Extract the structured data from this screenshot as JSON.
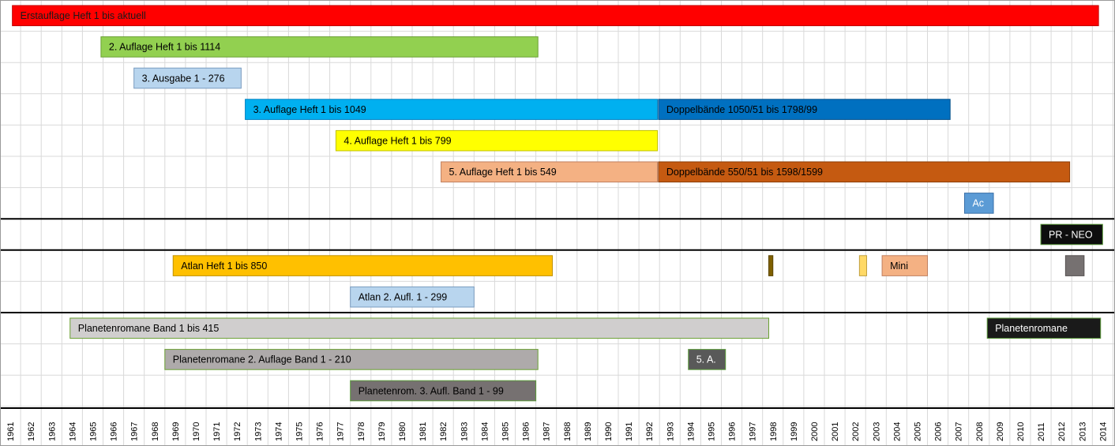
{
  "chart_data": {
    "type": "gantt",
    "title": "",
    "xlabel": "",
    "ylabel": "",
    "x_range": [
      1961,
      2015
    ],
    "grid": true,
    "years": [
      "1961",
      "1962",
      "1963",
      "1964",
      "1965",
      "1966",
      "1967",
      "1968",
      "1969",
      "1970",
      "1971",
      "1972",
      "1973",
      "1974",
      "1975",
      "1976",
      "1977",
      "1978",
      "1979",
      "1980",
      "1981",
      "1982",
      "1983",
      "1984",
      "1985",
      "1986",
      "1987",
      "1988",
      "1989",
      "1990",
      "1991",
      "1992",
      "1993",
      "1994",
      "1995",
      "1996",
      "1997",
      "1998",
      "1999",
      "2000",
      "2001",
      "2002",
      "2003",
      "2004",
      "2005",
      "2006",
      "2007",
      "2008",
      "2009",
      "2010",
      "2011",
      "2012",
      "2013",
      "2014"
    ],
    "separator_after_rows": [
      6,
      7,
      9
    ],
    "row_count": 13,
    "bars": [
      {
        "row": 0,
        "start": 1961.6,
        "end": 2014.3,
        "label": "Erstauflage Heft 1 bis aktuell",
        "color": "#ff0000",
        "border": "#c00000",
        "text_color": "#1a1a1a"
      },
      {
        "row": 1,
        "start": 1965.9,
        "end": 1987.1,
        "label": "2. Auflage Heft 1 bis 1114",
        "color": "#92d050",
        "border": "#6aa032",
        "text_color": "#000000"
      },
      {
        "row": 2,
        "start": 1967.5,
        "end": 1972.7,
        "label": "3. Ausgabe 1 - 276",
        "color": "#b8d5ee",
        "border": "#7a9cc0",
        "text_color": "#000000"
      },
      {
        "row": 3,
        "start": 1972.9,
        "end": 1992.9,
        "label": "3. Auflage Heft 1 bis 1049",
        "color": "#00b0f0",
        "border": "#0080c0",
        "text_color": "#000000"
      },
      {
        "row": 3,
        "start": 1992.95,
        "end": 2007.1,
        "label": "Doppelbände 1050/51 bis 1798/99",
        "color": "#0070c0",
        "border": "#004f8a",
        "text_color": "#000000"
      },
      {
        "row": 4,
        "start": 1977.3,
        "end": 1992.9,
        "label": "4. Auflage Heft 1 bis 799",
        "color": "#ffff00",
        "border": "#c0c000",
        "text_color": "#000000"
      },
      {
        "row": 5,
        "start": 1982.4,
        "end": 1992.9,
        "label": "5. Auflage Heft 1 bis 549",
        "color": "#f4b183",
        "border": "#c08060",
        "text_color": "#000000"
      },
      {
        "row": 5,
        "start": 1992.95,
        "end": 2012.9,
        "label": "Doppelbände 550/51 bis 1598/1599",
        "color": "#c55a11",
        "border": "#8a3c08",
        "text_color": "#000000"
      },
      {
        "row": 6,
        "start": 2007.8,
        "end": 2009.2,
        "label": "Ac",
        "color": "#5b9bd5",
        "border": "#3a70a8",
        "text_color": "#ffffff"
      },
      {
        "row": 7,
        "start": 2011.5,
        "end": 2014.5,
        "label": "PR - NEO",
        "color": "#0d0d0d",
        "border": "#5a9a3a",
        "text_color": "#ffffff"
      },
      {
        "row": 8,
        "start": 1969.4,
        "end": 1987.8,
        "label": "Atlan Heft 1 bis 850",
        "color": "#ffc000",
        "border": "#c09000",
        "text_color": "#000000"
      },
      {
        "row": 8,
        "start": 1998.3,
        "end": 1998.5,
        "label": "",
        "color": "#7f6000",
        "border": "#5a4400",
        "text_color": "#000000"
      },
      {
        "row": 8,
        "start": 2002.7,
        "end": 2003.05,
        "label": "",
        "color": "#ffd966",
        "border": "#c0a040",
        "text_color": "#000000"
      },
      {
        "row": 8,
        "start": 2003.8,
        "end": 2006.0,
        "label": "Mini",
        "color": "#f4b183",
        "border": "#c08060",
        "text_color": "#000000"
      },
      {
        "row": 8,
        "start": 2012.7,
        "end": 2013.6,
        "label": "",
        "color": "#767171",
        "border": "#555050",
        "text_color": "#000000"
      },
      {
        "row": 9,
        "start": 1978.0,
        "end": 1984.0,
        "label": "Atlan 2. Aufl. 1 - 299",
        "color": "#b8d5ee",
        "border": "#7a9cc0",
        "text_color": "#000000"
      },
      {
        "row": 10,
        "start": 1964.4,
        "end": 1998.3,
        "label": "Planetenromane Band 1 bis 415",
        "color": "#d0cece",
        "border": "#6aa032",
        "text_color": "#000000"
      },
      {
        "row": 10,
        "start": 2008.9,
        "end": 2014.4,
        "label": "Planetenromane",
        "color": "#1a1a1a",
        "border": "#5a9a3a",
        "text_color": "#ffffff"
      },
      {
        "row": 11,
        "start": 1969.0,
        "end": 1987.1,
        "label": "Planetenromane 2. Auflage Band 1 - 210",
        "color": "#aeaaaa",
        "border": "#6aa032",
        "text_color": "#000000"
      },
      {
        "row": 11,
        "start": 1994.4,
        "end": 1996.2,
        "label": "5. A.",
        "color": "#595959",
        "border": "#5a9a3a",
        "text_color": "#ffffff"
      },
      {
        "row": 12,
        "start": 1978.0,
        "end": 1987.0,
        "label": "Planetenrom. 3. Aufl. Band 1 - 99",
        "color": "#767171",
        "border": "#5a9a3a",
        "text_color": "#000000"
      }
    ]
  }
}
